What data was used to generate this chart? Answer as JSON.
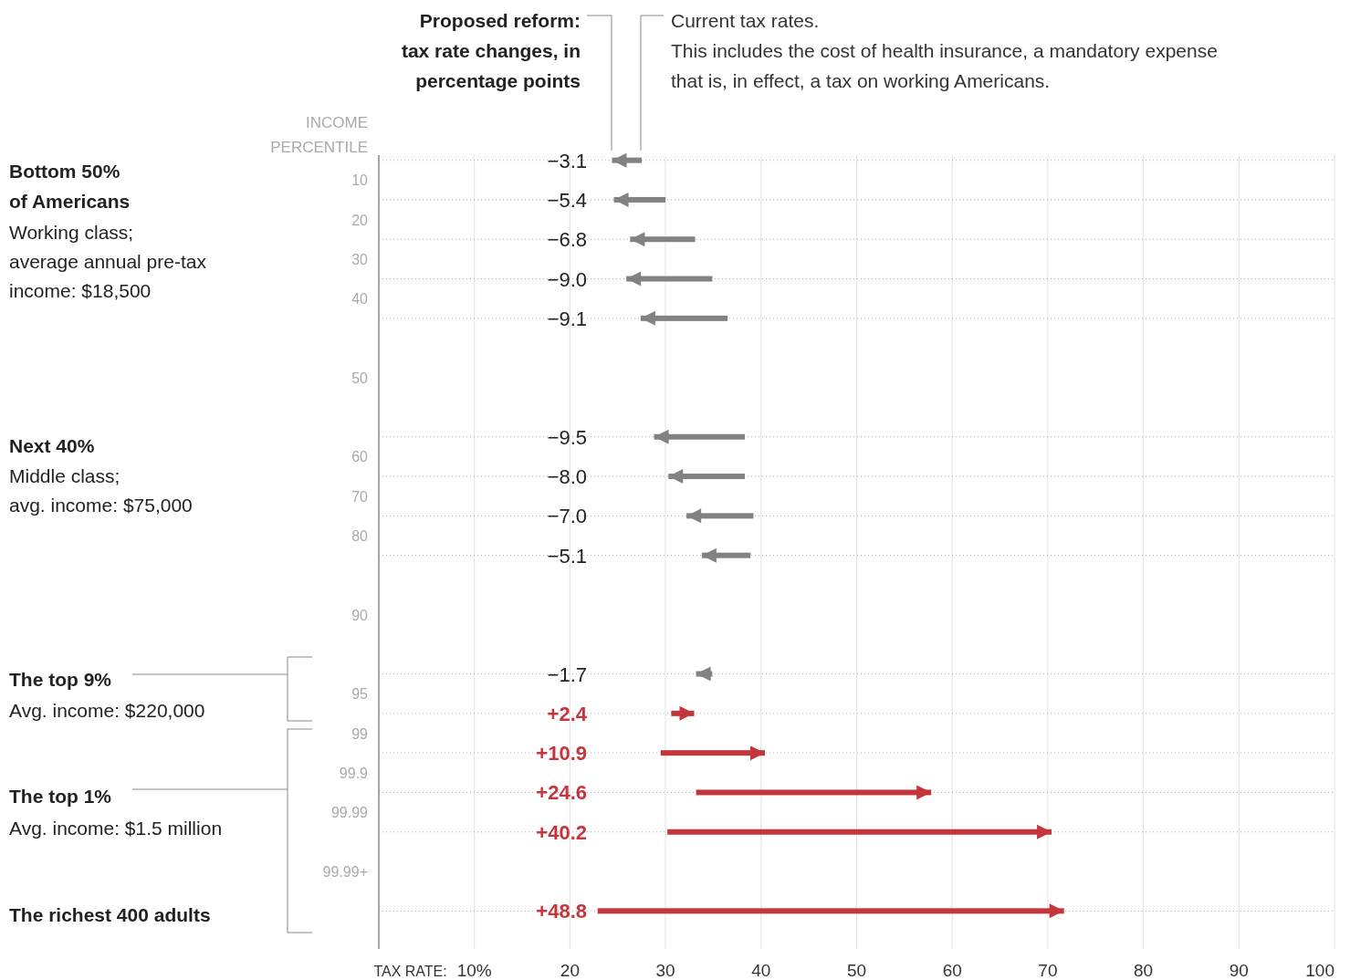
{
  "chart_data": {
    "type": "bar",
    "orientation": "horizontal",
    "categories": [
      null,
      null,
      null,
      null,
      null,
      null,
      null,
      null,
      null,
      null,
      null,
      null,
      null,
      null,
      null,
      null,
      null,
      null,
      null,
      null
    ],
    "base": [
      27.5,
      30.0,
      33.1,
      34.9,
      36.5,
      null,
      null,
      38.3,
      38.3,
      39.2,
      38.9,
      null,
      null,
      34.9,
      30.6,
      29.5,
      33.2,
      30.2,
      null,
      22.9
    ],
    "values": [
      -3.1,
      -5.4,
      -6.8,
      -9.0,
      -9.1,
      null,
      null,
      -9.5,
      -8.0,
      -7.0,
      -5.1,
      null,
      null,
      -1.7,
      2.4,
      10.9,
      24.6,
      40.2,
      null,
      48.8
    ],
    "value_labels": [
      "−3.1",
      "−5.4",
      "−6.8",
      "−9.0",
      "−9.1",
      null,
      null,
      "−9.5",
      "−8.0",
      "−7.0",
      "−5.1",
      null,
      null,
      "−1.7",
      "+2.4",
      "+10.9",
      "+24.6",
      "+40.2",
      null,
      "+48.8"
    ],
    "colors": [
      "#828282",
      "#828282",
      "#828282",
      "#828282",
      "#828282",
      null,
      null,
      "#828282",
      "#828282",
      "#828282",
      "#828282",
      null,
      null,
      "#828282",
      "#c4363c",
      "#c4363c",
      "#c4363c",
      "#c4363c",
      null,
      "#c4363c"
    ],
    "xlabel": "TAX RATE:",
    "ylabel": "INCOME\nPERCENTILE",
    "xlim": [
      0,
      100
    ],
    "xticks": [
      {
        "value": 10,
        "label": "10%"
      },
      20,
      30,
      40,
      50,
      60,
      70,
      80,
      90,
      100
    ],
    "grid": true,
    "annotations": [
      "Proposed reform:\ntax rate changes, in\npercentage points",
      "Current tax rates.\nThis includes the cost of health insurance, a mandatory expense\nthat is, in effect, a tax on working Americans.",
      "Bottom 50%\nof Americans",
      "Working class;\naverage annual pre-tax\nincome: $18,500",
      "Next 40%",
      "Middle class;\navg. income: $75,000",
      "The top 9%",
      "Avg. income: $220,000",
      "The top 1%",
      "Avg. income: $1.5 million",
      "The richest 400 adults",
      "10",
      "20",
      "30",
      "40",
      "50",
      "60",
      "70",
      "80",
      "90",
      "95",
      "99",
      "99.9",
      "99.99",
      "99.99+"
    ]
  }
}
